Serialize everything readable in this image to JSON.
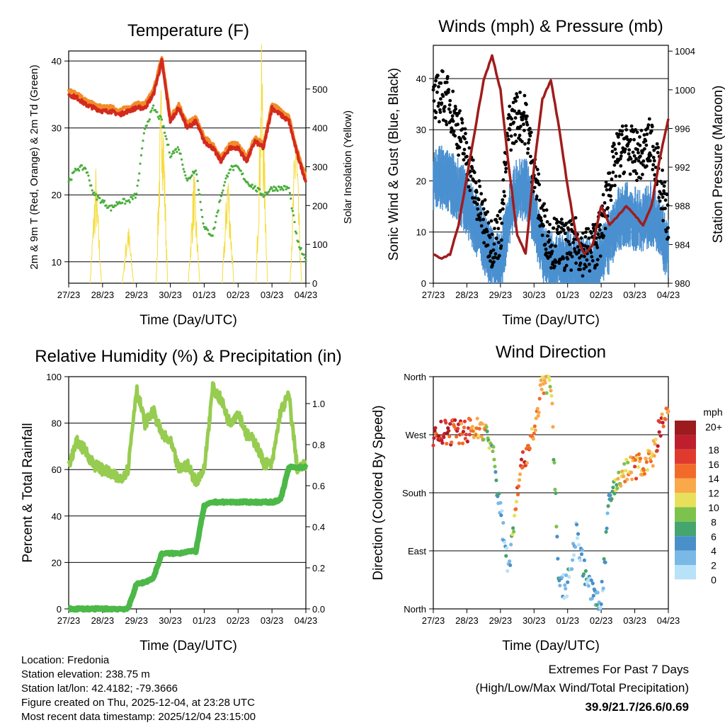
{
  "x_ticks": [
    "27/23",
    "28/23",
    "29/23",
    "30/23",
    "01/23",
    "02/23",
    "03/23",
    "04/23"
  ],
  "x_label": "Time (Day/UTC)",
  "hours_step": 6,
  "temperature": {
    "title": "Temperature (F)",
    "ylabel_left": "2m & 9m T (Red, Orange) & 2m Td (Green)",
    "ylabel_right": "Solar Insolation (Yellow)",
    "yticks_left": [
      10,
      20,
      30,
      40
    ],
    "yticks_right": [
      0,
      100,
      200,
      300,
      400,
      500
    ],
    "ylim_left": [
      6.8,
      41.5
    ],
    "ylim_right": [
      0,
      598
    ],
    "colors": {
      "t2m": "#d42a1e",
      "t9m": "#f28c28",
      "td": "#4aae3c",
      "solar": "#f5dc3c"
    },
    "t2m": [
      35,
      34.5,
      33.5,
      33,
      32.5,
      32.5,
      32,
      32.5,
      33,
      33,
      35,
      40,
      31,
      33,
      30,
      31,
      28,
      27,
      25,
      27,
      27,
      25,
      28,
      27,
      33,
      32,
      31,
      26,
      22
    ],
    "td": [
      22,
      24,
      24,
      20,
      19,
      18,
      19,
      19,
      20,
      30,
      33,
      31,
      26,
      27,
      22,
      24,
      15,
      14,
      20,
      24,
      24,
      22,
      21,
      20,
      21,
      21,
      21,
      13,
      10
    ],
    "solar_peaks": [
      {
        "day": 0.8,
        "value": 280
      },
      {
        "day": 1.75,
        "value": 160
      },
      {
        "day": 2.75,
        "value": 560
      },
      {
        "day": 3.7,
        "value": 280
      },
      {
        "day": 4.7,
        "value": 300
      },
      {
        "day": 5.7,
        "value": 590
      },
      {
        "day": 6.7,
        "value": 420
      }
    ]
  },
  "winds": {
    "title": "Winds (mph) & Pressure (mb)",
    "ylabel_left": "Sonic Wind & Gust (Blue, Black)",
    "ylabel_right": "Station Pressure (Maroon)",
    "yticks_left": [
      0,
      10,
      20,
      30,
      40
    ],
    "yticks_right": [
      980,
      984,
      988,
      992,
      996,
      1000,
      1004
    ],
    "ylim_left": [
      0,
      46.5
    ],
    "ylim_right": [
      980,
      1004.6
    ],
    "colors": {
      "wind": "#4a90d0",
      "gust": "#000000",
      "pressure": "#a01c1c"
    },
    "wind": [
      22,
      22,
      21,
      20,
      17,
      13,
      10,
      6,
      5,
      15,
      20,
      20,
      15,
      8,
      5,
      5,
      5,
      5,
      4,
      5,
      6,
      10,
      14,
      15,
      14,
      14,
      15,
      12,
      8
    ],
    "gust": [
      35,
      37,
      35,
      30,
      25,
      18,
      12,
      8,
      10,
      30,
      33,
      32,
      22,
      12,
      8,
      8,
      7,
      8,
      6,
      7,
      10,
      20,
      25,
      27,
      25,
      25,
      28,
      20,
      12
    ],
    "pressure": [
      983,
      982.5,
      983,
      986,
      991,
      996,
      1001,
      1003.5,
      1000,
      992,
      985,
      983,
      992,
      999,
      1001,
      996,
      990,
      985,
      983,
      984,
      988,
      986,
      987,
      988,
      987,
      986,
      988,
      993,
      997
    ]
  },
  "humidity": {
    "title": "Relative Humidity (%) & Precipitation (in)",
    "ylabel_left": "Percent & Total Rainfall",
    "yticks_left": [
      0,
      20,
      40,
      60,
      80,
      100
    ],
    "yticks_right": [
      "0.0",
      "0.2",
      "0.4",
      "0.6",
      "0.8",
      "1.0"
    ],
    "ylim_left": [
      0,
      100
    ],
    "ylim_right": [
      0,
      1.131
    ],
    "colors": {
      "rh": "#96cc50",
      "precip": "#4cb848"
    },
    "rh": [
      62,
      72,
      68,
      62,
      60,
      58,
      56,
      60,
      95,
      80,
      85,
      75,
      72,
      60,
      62,
      55,
      60,
      95,
      90,
      80,
      85,
      75,
      72,
      63,
      62,
      85,
      92,
      60,
      62
    ],
    "precip": [
      0,
      0,
      0,
      0,
      0,
      0,
      0,
      0,
      0.12,
      0.13,
      0.15,
      0.27,
      0.27,
      0.27,
      0.28,
      0.28,
      0.5,
      0.52,
      0.52,
      0.52,
      0.52,
      0.52,
      0.52,
      0.52,
      0.52,
      0.53,
      0.69,
      0.69,
      0.69
    ]
  },
  "direction": {
    "title": "Wind Direction",
    "ylabel": "Direction (Colored By Speed)",
    "yticks": [
      {
        "label": "North",
        "deg": 0
      },
      {
        "label": "East",
        "deg": 90
      },
      {
        "label": "South",
        "deg": 180
      },
      {
        "label": "West",
        "deg": 270
      },
      {
        "label": "North",
        "deg": 360
      }
    ],
    "dir": [
      268,
      272,
      274,
      276,
      276,
      278,
      280,
      250,
      150,
      60,
      190,
      240,
      275,
      350,
      355,
      30,
      40,
      120,
      60,
      20,
      10,
      170,
      200,
      215,
      220,
      225,
      230,
      280,
      300
    ],
    "speed": [
      18,
      18,
      18,
      17,
      16,
      14,
      12,
      8,
      4,
      4,
      14,
      17,
      14,
      12,
      12,
      4,
      4,
      3,
      4,
      4,
      4,
      6,
      10,
      12,
      14,
      13,
      12,
      17,
      12
    ],
    "legend_title": "mph",
    "legend": [
      {
        "label": "20+",
        "color": "#9b1b1e"
      },
      {
        "label": "18",
        "color": "#be1e2d"
      },
      {
        "label": "16",
        "color": "#e03a2f"
      },
      {
        "label": "14",
        "color": "#f26a2a"
      },
      {
        "label": "12",
        "color": "#f9a84a"
      },
      {
        "label": "10",
        "color": "#e8e05a"
      },
      {
        "label": "8",
        "color": "#7dc24c"
      },
      {
        "label": "6",
        "color": "#45a56e"
      },
      {
        "label": "4",
        "color": "#4a90c8"
      },
      {
        "label": "2",
        "color": "#7ab8e6"
      },
      {
        "label": "0",
        "color": "#b8e2f8"
      }
    ]
  },
  "footer": {
    "location": "Location: Fredonia",
    "elevation": "Station elevation: 238.75 m",
    "latlon": "Station lat/lon: 42.4182; -79.3666",
    "created": "Figure created on Thu, 2025-12-04, at 23:28 UTC",
    "recent": "Most recent data timestamp: 2025/12/04 23:15:00",
    "extremes_title": "Extremes For Past 7 Days",
    "extremes_sub": "(High/Low/Max Wind/Total Precipitation)",
    "extremes_values": "39.9/21.7/26.6/0.69",
    "extremes_color": "#c8202a"
  }
}
